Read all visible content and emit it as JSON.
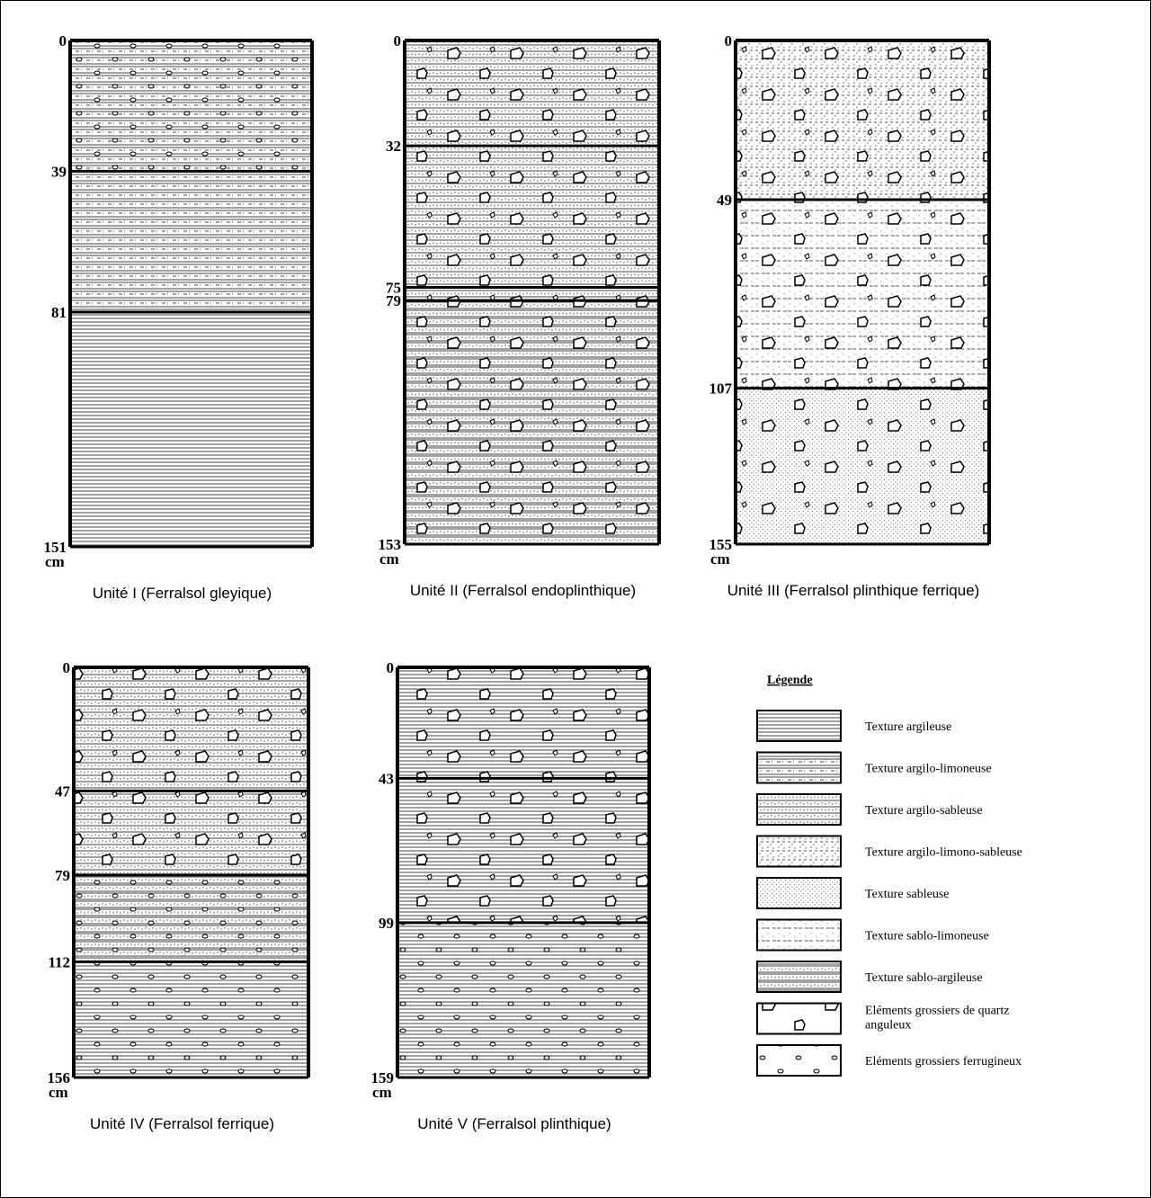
{
  "profiles": [
    {
      "caption": "Unité I (Ferralsol gleyique)",
      "unit": "cm",
      "depths": [
        0,
        39,
        81,
        151
      ]
    },
    {
      "caption": "Unité II (Ferralsol endoplinthique)",
      "unit": "cm",
      "depths": [
        0,
        32,
        75,
        79,
        153
      ]
    },
    {
      "caption": "Unité III (Ferralsol plinthique ferrique)",
      "unit": "cm",
      "depths": [
        0,
        49,
        107,
        155
      ]
    },
    {
      "caption": "Unité IV (Ferralsol ferrique)",
      "unit": "cm",
      "depths": [
        0,
        47,
        79,
        112,
        156
      ]
    },
    {
      "caption": "Unité V (Ferralsol plinthique)",
      "unit": "cm",
      "depths": [
        0,
        43,
        99,
        159
      ]
    }
  ],
  "legend": {
    "title": "Légende",
    "items": [
      "Texture argileuse",
      "Texture argilo-limoneuse",
      "Texture argilo-sableuse",
      "Texture argilo-limono-sableuse",
      "Texture sableuse",
      "Texture sablo-limoneuse",
      "Texture sablo-argileuse",
      "Eléments grossiers de quartz anguleux",
      "Eléments grossiers ferrugineux"
    ]
  }
}
